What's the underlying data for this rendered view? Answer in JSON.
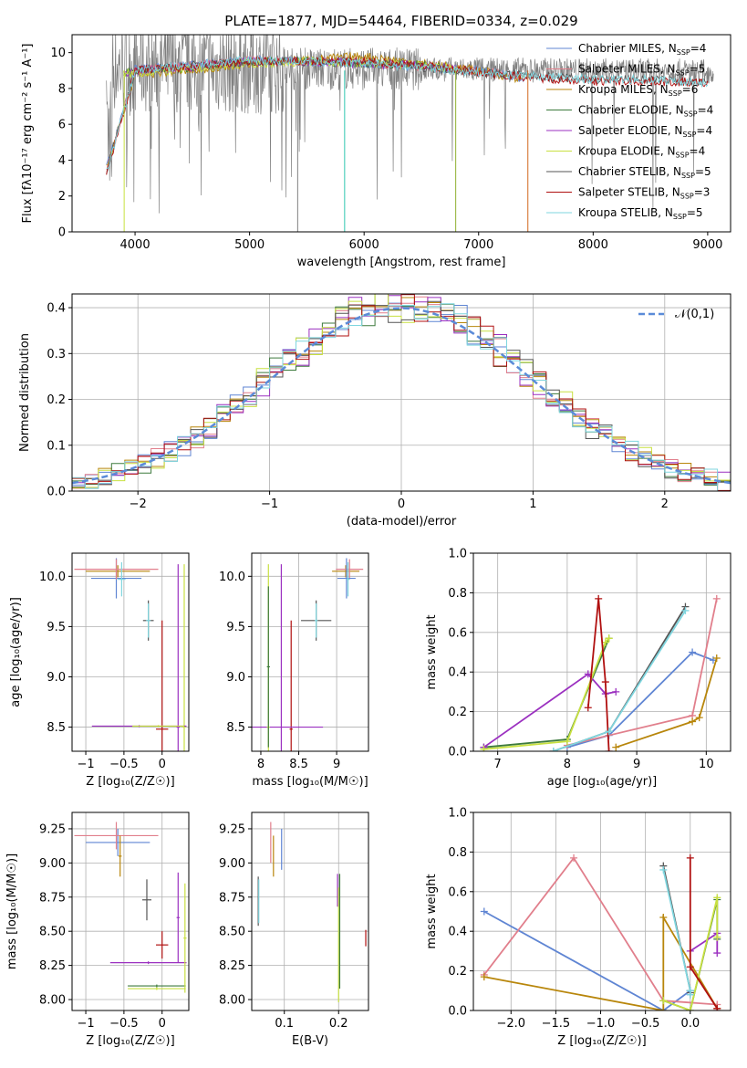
{
  "figure_title": "PLATE=1877, MJD=54464, FIBERID=0334, z=0.029",
  "models": [
    {
      "name": "Chabrier MILES",
      "nssp": "4",
      "color": "#5f85d3"
    },
    {
      "name": "Salpeter MILES",
      "nssp": "5",
      "color": "#e17f8c"
    },
    {
      "name": "Kroupa MILES",
      "nssp": "6",
      "color": "#b8860b"
    },
    {
      "name": "Chabrier ELODIE",
      "nssp": "4",
      "color": "#3d7a3d"
    },
    {
      "name": "Salpeter ELODIE",
      "nssp": "4",
      "color": "#9b30c0"
    },
    {
      "name": "Kroupa ELODIE",
      "nssp": "4",
      "color": "#c8e040"
    },
    {
      "name": "Chabrier STELIB",
      "nssp": "5",
      "color": "#555555"
    },
    {
      "name": "Salpeter STELIB",
      "nssp": "3",
      "color": "#b01010"
    },
    {
      "name": "Kroupa STELIB",
      "nssp": "5",
      "color": "#7fd6df"
    }
  ],
  "chart_data": [
    {
      "id": "spectrum",
      "type": "line",
      "xlabel": "wavelength [Angstrom, rest frame]",
      "ylabel": "Flux [fλ10⁻¹⁷ erg cm⁻² s⁻¹ A⁻¹]",
      "xlim": [
        3450,
        9200
      ],
      "ylim": [
        0,
        11
      ],
      "xticks": [
        4000,
        5000,
        6000,
        7000,
        8000,
        9000
      ],
      "yticks": [
        0,
        2,
        4,
        6,
        8,
        10
      ],
      "legend_position": "top-right",
      "observed_x_range": [
        3750,
        9050
      ],
      "observed_level": 9.2,
      "series": [
        {
          "name": "Chabrier MILES, N_SSP=4",
          "x": [
            3750,
            4000,
            4500,
            5000,
            5500,
            6000,
            6500,
            7000,
            7400
          ],
          "y": [
            3.5,
            9.1,
            9.3,
            9.6,
            9.5,
            9.4,
            9.2,
            9.0,
            8.6
          ]
        },
        {
          "name": "Salpeter MILES, N_SSP=5",
          "x": [
            3750,
            4000,
            4500,
            5000,
            5500,
            6000,
            6500,
            7000,
            7400
          ],
          "y": [
            3.4,
            9.0,
            9.3,
            9.6,
            9.5,
            9.4,
            9.2,
            9.0,
            8.6
          ]
        },
        {
          "name": "Kroupa MILES, N_SSP=6",
          "x": [
            3750,
            4000,
            4500,
            5000,
            5500,
            6000,
            6500,
            7000,
            7400
          ],
          "y": [
            3.5,
            8.8,
            9.0,
            9.4,
            9.6,
            9.8,
            9.4,
            9.0,
            8.5
          ]
        },
        {
          "name": "Chabrier ELODIE, N_SSP=4",
          "x": [
            3900,
            4500,
            5000,
            5500,
            6000,
            6500,
            6800
          ],
          "y": [
            8.9,
            9.2,
            9.5,
            9.5,
            9.4,
            9.3,
            9.1
          ]
        },
        {
          "name": "Salpeter ELODIE, N_SSP=4",
          "x": [
            3900,
            4500,
            5000,
            5500,
            6000,
            6500,
            6800
          ],
          "y": [
            8.9,
            9.2,
            9.5,
            9.5,
            9.4,
            9.3,
            9.1
          ]
        },
        {
          "name": "Kroupa ELODIE, N_SSP=4",
          "x": [
            3900,
            4500,
            5000,
            5500,
            6000,
            6500,
            6800
          ],
          "y": [
            8.8,
            9.1,
            9.4,
            9.5,
            9.4,
            9.3,
            9.1
          ]
        },
        {
          "name": "Chabrier STELIB, N_SSP=5",
          "x": [
            3750,
            4000,
            4500,
            5000,
            5500,
            6000,
            6500,
            7000,
            7500,
            8000,
            8500,
            9000
          ],
          "y": [
            3.4,
            9.0,
            9.3,
            9.5,
            9.5,
            9.4,
            9.2,
            8.9,
            8.7,
            8.5,
            8.5,
            8.3
          ]
        },
        {
          "name": "Salpeter STELIB, N_SSP=3",
          "x": [
            3750,
            4000,
            4500,
            5000,
            5500,
            6000,
            6500,
            7000,
            7500,
            8000,
            8500,
            9000
          ],
          "y": [
            3.2,
            9.0,
            9.2,
            9.5,
            9.5,
            9.5,
            9.3,
            8.9,
            8.6,
            8.4,
            8.4,
            8.3
          ]
        },
        {
          "name": "Kroupa STELIB, N_SSP=5",
          "x": [
            3750,
            4000,
            4500,
            5000,
            5500,
            6000,
            6500,
            7000,
            7500,
            8000,
            8500,
            9000
          ],
          "y": [
            3.3,
            9.0,
            9.3,
            9.6,
            9.5,
            9.4,
            9.2,
            8.9,
            8.7,
            8.5,
            8.5,
            8.3
          ]
        }
      ]
    },
    {
      "id": "normed",
      "type": "step",
      "xlabel": "(data-model)/error",
      "ylabel": "Normed distribution",
      "xlim": [
        -2.5,
        2.5
      ],
      "ylim": [
        0,
        0.43
      ],
      "xticks": [
        -2,
        -1,
        0,
        1,
        2
      ],
      "yticks": [
        0.0,
        0.1,
        0.2,
        0.3,
        0.4
      ],
      "bin_width": 0.1,
      "legend": "𝒩(0,1)",
      "legend_position": "top-right",
      "gaussian": {
        "mu": 0,
        "sigma": 1
      },
      "note": "one histogram per model, each close to the N(0,1) curve"
    },
    {
      "id": "age-Z",
      "type": "errorbar",
      "xlabel": "Z [log₁₀(Z/Z☉)]",
      "ylabel": "age  [log₁₀(age/yr)]",
      "xlim": [
        -1.18,
        0.35
      ],
      "ylim": [
        8.26,
        10.23
      ],
      "xticks": [
        -1,
        -0.5,
        0
      ],
      "xticklabels": [
        "−1",
        "−0.5",
        "0"
      ],
      "yticks": [
        8.5,
        9.0,
        9.5,
        10.0
      ],
      "points": [
        {
          "x": -0.58,
          "y": 10.05,
          "xerr": 0.42,
          "yerr": 0.06,
          "model": 2
        },
        {
          "x": -0.6,
          "y": 9.98,
          "xerr": 0.33,
          "yerr": 0.2,
          "model": 0
        },
        {
          "x": -0.6,
          "y": 10.07,
          "xerr": 0.55,
          "yerr": 0.1,
          "model": 1
        },
        {
          "x": -0.53,
          "y": 9.97,
          "xerr": 0.05,
          "yerr": 0.17,
          "model": 8
        },
        {
          "x": -0.18,
          "y": 9.56,
          "xerr": 0.07,
          "yerr": 0.2,
          "model": 6
        },
        {
          "x": -0.18,
          "y": 9.56,
          "xerr": 0.03,
          "yerr": 0.17,
          "model": 8
        },
        {
          "x": 0.0,
          "y": 8.48,
          "xerr": 0.08,
          "yerr": 1.08,
          "model": 7
        },
        {
          "x": 0.21,
          "y": 8.5,
          "xerr": 0.02,
          "yerr": 1.62,
          "model": 4
        },
        {
          "x": 0.29,
          "y": 8.5,
          "xerr": 0.02,
          "yerr": 1.62,
          "model": 5
        },
        {
          "x": -0.3,
          "y": 8.51,
          "xerr": 0.62,
          "yerr": 0.01,
          "model": 4
        },
        {
          "x": -0.05,
          "y": 8.51,
          "xerr": 0.34,
          "yerr": 0.01,
          "model": 5
        }
      ]
    },
    {
      "id": "age-mass",
      "type": "errorbar",
      "xlabel": "mass [log₁₀(M/M☉)]",
      "xlim": [
        7.88,
        9.42
      ],
      "ylim": [
        8.26,
        10.23
      ],
      "xticks": [
        8.0,
        8.5,
        9.0
      ],
      "yticks": [
        8.5,
        9.0,
        9.5,
        10.0
      ],
      "points": [
        {
          "x": 9.12,
          "y": 10.05,
          "xerr": 0.18,
          "yerr": 0.06,
          "model": 2
        },
        {
          "x": 9.17,
          "y": 10.07,
          "xerr": 0.18,
          "yerr": 0.1,
          "model": 1
        },
        {
          "x": 9.13,
          "y": 9.98,
          "xerr": 0.12,
          "yerr": 0.2,
          "model": 0
        },
        {
          "x": 9.15,
          "y": 9.97,
          "xerr": 0.02,
          "yerr": 0.17,
          "model": 8
        },
        {
          "x": 8.73,
          "y": 9.56,
          "xerr": 0.2,
          "yerr": 0.2,
          "model": 6
        },
        {
          "x": 8.73,
          "y": 9.56,
          "xerr": 0.02,
          "yerr": 0.17,
          "model": 8
        },
        {
          "x": 8.4,
          "y": 8.48,
          "xerr": 0.02,
          "yerr": 1.08,
          "model": 7
        },
        {
          "x": 8.27,
          "y": 8.5,
          "xerr": 0.55,
          "yerr": 1.62,
          "model": 4
        },
        {
          "x": 8.1,
          "y": 8.5,
          "xerr": 0.02,
          "yerr": 1.62,
          "model": 5
        },
        {
          "x": 8.1,
          "y": 9.1,
          "xerr": 0.02,
          "yerr": 0.8,
          "model": 3
        }
      ]
    },
    {
      "id": "mw-age",
      "type": "line",
      "xlabel": "age  [log₁₀(age/yr)]",
      "ylabel": "mass weight",
      "xlim": [
        6.65,
        10.35
      ],
      "ylim": [
        0,
        1
      ],
      "xticks": [
        7,
        8,
        9,
        10
      ],
      "yticks": [
        0.0,
        0.2,
        0.4,
        0.6,
        0.8,
        1.0
      ],
      "series": [
        {
          "model": 0,
          "x": [
            8.0,
            8.6,
            9.8,
            10.1
          ],
          "y": [
            0.02,
            0.08,
            0.5,
            0.46
          ]
        },
        {
          "model": 1,
          "x": [
            8.0,
            9.8,
            10.15
          ],
          "y": [
            0.03,
            0.18,
            0.77
          ]
        },
        {
          "model": 2,
          "x": [
            8.7,
            9.8,
            9.9,
            10.15
          ],
          "y": [
            0.02,
            0.15,
            0.17,
            0.47
          ]
        },
        {
          "model": 3,
          "x": [
            6.8,
            8.0,
            8.6
          ],
          "y": [
            0.02,
            0.06,
            0.57
          ]
        },
        {
          "model": 4,
          "x": [
            6.8,
            8.3,
            8.55,
            8.7
          ],
          "y": [
            0.02,
            0.39,
            0.29,
            0.3
          ]
        },
        {
          "model": 5,
          "x": [
            6.8,
            8.0,
            8.55,
            8.6
          ],
          "y": [
            0.01,
            0.05,
            0.55,
            0.57
          ]
        },
        {
          "model": 6,
          "x": [
            7.8,
            8.6,
            9.7
          ],
          "y": [
            0.0,
            0.1,
            0.73
          ]
        },
        {
          "model": 7,
          "x": [
            8.3,
            8.45,
            8.55,
            8.6
          ],
          "y": [
            0.22,
            0.77,
            0.35,
            0.0
          ]
        },
        {
          "model": 8,
          "x": [
            7.8,
            8.6,
            9.7
          ],
          "y": [
            0.0,
            0.1,
            0.71
          ]
        }
      ]
    },
    {
      "id": "mass-Z",
      "type": "errorbar",
      "xlabel": "Z [log₁₀(Z/Z☉)]",
      "ylabel": "mass [log₁₀(M/M☉)]",
      "xlim": [
        -1.18,
        0.35
      ],
      "ylim": [
        7.92,
        9.37
      ],
      "xticks": [
        -1,
        -0.5,
        0
      ],
      "xticklabels": [
        "−1",
        "−0.5",
        "0"
      ],
      "yticks": [
        8.0,
        8.25,
        8.5,
        8.75,
        9.0,
        9.25
      ],
      "points": [
        {
          "x": -0.58,
          "y": 9.15,
          "xerr": 0.42,
          "yerr": 0.1,
          "model": 0
        },
        {
          "x": -0.6,
          "y": 9.2,
          "xerr": 0.55,
          "yerr": 0.1,
          "model": 1
        },
        {
          "x": -0.55,
          "y": 9.05,
          "xerr": 0.02,
          "yerr": 0.15,
          "model": 2
        },
        {
          "x": -0.2,
          "y": 8.73,
          "xerr": 0.06,
          "yerr": 0.15,
          "model": 6
        },
        {
          "x": 0.0,
          "y": 8.4,
          "xerr": 0.08,
          "yerr": 0.1,
          "model": 7
        },
        {
          "x": 0.21,
          "y": 8.6,
          "xerr": 0.02,
          "yerr": 0.33,
          "model": 4
        },
        {
          "x": -0.18,
          "y": 8.27,
          "xerr": 0.5,
          "yerr": 0.01,
          "model": 4
        },
        {
          "x": -0.07,
          "y": 8.1,
          "xerr": 0.38,
          "yerr": 0.01,
          "model": 3
        },
        {
          "x": 0.3,
          "y": 8.45,
          "xerr": 0.02,
          "yerr": 0.4,
          "model": 5
        },
        {
          "x": -0.07,
          "y": 8.08,
          "xerr": 0.38,
          "yerr": 0.01,
          "model": 5
        }
      ]
    },
    {
      "id": "mass-EBV",
      "type": "errorbar",
      "xlabel": "E(B-V)",
      "xlim": [
        0.04,
        0.255
      ],
      "ylim": [
        7.92,
        9.37
      ],
      "xticks": [
        0.1,
        0.2
      ],
      "yticks": [
        8.0,
        8.25,
        8.5,
        8.75,
        9.0,
        9.25
      ],
      "points": [
        {
          "x": 0.052,
          "y": 8.72,
          "xerr": 0.0,
          "yerr": 0.18,
          "model": 6
        },
        {
          "x": 0.053,
          "y": 8.72,
          "xerr": 0.0,
          "yerr": 0.16,
          "model": 8
        },
        {
          "x": 0.075,
          "y": 9.15,
          "xerr": 0.0,
          "yerr": 0.15,
          "model": 1
        },
        {
          "x": 0.08,
          "y": 9.05,
          "xerr": 0.0,
          "yerr": 0.15,
          "model": 2
        },
        {
          "x": 0.095,
          "y": 9.1,
          "xerr": 0.0,
          "yerr": 0.15,
          "model": 0
        },
        {
          "x": 0.198,
          "y": 8.8,
          "xerr": 0.0,
          "yerr": 0.12,
          "model": 4
        },
        {
          "x": 0.2,
          "y": 8.4,
          "xerr": 0.0,
          "yerr": 0.42,
          "model": 5
        },
        {
          "x": 0.202,
          "y": 8.5,
          "xerr": 0.0,
          "yerr": 0.42,
          "model": 3
        },
        {
          "x": 0.25,
          "y": 8.45,
          "xerr": 0.0,
          "yerr": 0.06,
          "model": 7
        }
      ]
    },
    {
      "id": "mw-Z",
      "type": "line",
      "xlabel": "Z [log₁₀(Z/Z☉)]",
      "ylabel": "mass weight",
      "xlim": [
        -2.42,
        0.45
      ],
      "ylim": [
        0,
        1
      ],
      "xticks": [
        -2.0,
        -1.5,
        -1.0,
        -0.5,
        0.0
      ],
      "xticklabels": [
        "−2.0",
        "−1.5",
        "−1.0",
        "−0.5",
        "0.0"
      ],
      "yticks": [
        0.0,
        0.2,
        0.4,
        0.6,
        0.8,
        1.0
      ],
      "series": [
        {
          "model": 0,
          "x": [
            -2.3,
            -0.3,
            0.0,
            0.0
          ],
          "y": [
            0.5,
            0.0,
            0.1,
            0.08
          ]
        },
        {
          "model": 1,
          "x": [
            -2.3,
            -1.3,
            -0.3,
            0.3
          ],
          "y": [
            0.18,
            0.77,
            0.05,
            0.03
          ]
        },
        {
          "model": 2,
          "x": [
            -2.3,
            -0.3,
            -0.3,
            0.3
          ],
          "y": [
            0.17,
            0.0,
            0.47,
            0.01
          ]
        },
        {
          "model": 3,
          "x": [
            -0.3,
            0.0,
            0.3,
            0.3
          ],
          "y": [
            0.05,
            0.0,
            0.56,
            0.36
          ]
        },
        {
          "model": 4,
          "x": [
            0.0,
            0.3,
            0.3
          ],
          "y": [
            0.3,
            0.39,
            0.29
          ]
        },
        {
          "model": 5,
          "x": [
            -0.3,
            0.0,
            0.3,
            0.3
          ],
          "y": [
            0.05,
            0.0,
            0.57,
            0.37
          ]
        },
        {
          "model": 6,
          "x": [
            -0.3,
            0.0,
            0.0
          ],
          "y": [
            0.73,
            0.1,
            0.09
          ]
        },
        {
          "model": 7,
          "x": [
            0.0,
            0.0,
            0.3,
            0.3
          ],
          "y": [
            0.77,
            0.22,
            0.01,
            0.0
          ]
        },
        {
          "model": 8,
          "x": [
            -0.3,
            0.0,
            0.0
          ],
          "y": [
            0.71,
            0.1,
            0.08
          ]
        }
      ]
    }
  ]
}
